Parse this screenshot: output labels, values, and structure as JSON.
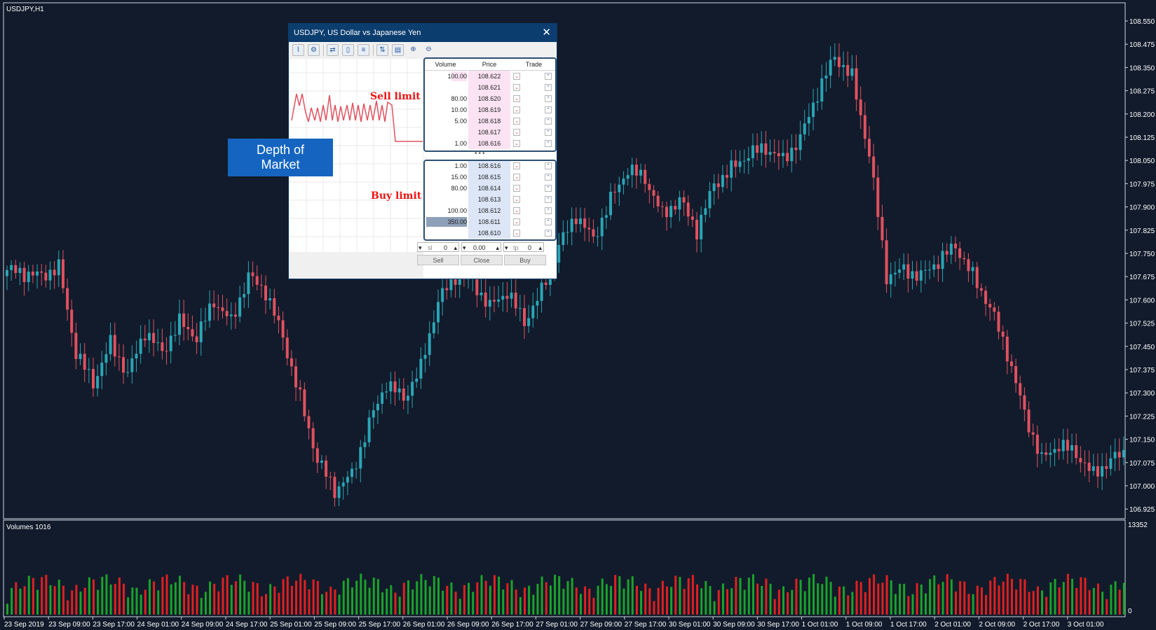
{
  "chart": {
    "symbol_label": "USDJPY,H1",
    "volumes_label": "Volumes 1016",
    "volume_max_label": "13352",
    "volume_zero_label": "0",
    "colors": {
      "background": "#121b2b",
      "bull": "#2aa5b5",
      "bear": "#e0515f",
      "vol_up": "#1aa32a",
      "vol_down": "#e02020",
      "axis_text": "#ffffff"
    }
  },
  "price_axis": {
    "ticks": [
      "108.550",
      "108.475",
      "108.350",
      "108.275",
      "108.200",
      "108.125",
      "108.050",
      "107.975",
      "107.900",
      "107.825",
      "107.750",
      "107.675",
      "107.600",
      "107.525",
      "107.450",
      "107.375",
      "107.300",
      "107.225",
      "107.150",
      "107.075",
      "107.000",
      "106.925"
    ]
  },
  "time_axis": {
    "ticks": [
      "23 Sep 2019",
      "23 Sep 09:00",
      "23 Sep 17:00",
      "24 Sep 01:00",
      "24 Sep 09:00",
      "24 Sep 17:00",
      "25 Sep 01:00",
      "25 Sep 09:00",
      "25 Sep 17:00",
      "26 Sep 01:00",
      "26 Sep 09:00",
      "26 Sep 17:00",
      "27 Sep 01:00",
      "27 Sep 09:00",
      "27 Sep 17:00",
      "30 Sep 01:00",
      "30 Sep 09:00",
      "30 Sep 17:00",
      "1 Oct 01:00",
      "1 Oct 09:00",
      "1 Oct 17:00",
      "2 Oct 01:00",
      "2 Oct 09:00",
      "2 Oct 17:00",
      "3 Oct 01:00"
    ]
  },
  "chart_data": {
    "type": "candlestick",
    "price_range": [
      106.925,
      108.585
    ],
    "volume_range": [
      0,
      13352
    ],
    "anchors": [
      [
        0,
        107.72
      ],
      [
        8,
        107.7
      ],
      [
        12,
        107.73
      ],
      [
        16,
        107.45
      ],
      [
        20,
        107.35
      ],
      [
        24,
        107.48
      ],
      [
        28,
        107.38
      ],
      [
        32,
        107.52
      ],
      [
        36,
        107.45
      ],
      [
        40,
        107.55
      ],
      [
        44,
        107.5
      ],
      [
        48,
        107.62
      ],
      [
        52,
        107.55
      ],
      [
        56,
        107.7
      ],
      [
        60,
        107.65
      ],
      [
        64,
        107.5
      ],
      [
        68,
        107.3
      ],
      [
        72,
        107.1
      ],
      [
        76,
        107.0
      ],
      [
        80,
        107.05
      ],
      [
        84,
        107.22
      ],
      [
        88,
        107.35
      ],
      [
        92,
        107.3
      ],
      [
        96,
        107.4
      ],
      [
        100,
        107.62
      ],
      [
        104,
        107.7
      ],
      [
        108,
        107.68
      ],
      [
        112,
        107.6
      ],
      [
        116,
        107.65
      ],
      [
        120,
        107.55
      ],
      [
        124,
        107.65
      ],
      [
        128,
        107.8
      ],
      [
        132,
        107.9
      ],
      [
        136,
        107.82
      ],
      [
        140,
        107.95
      ],
      [
        144,
        108.05
      ],
      [
        148,
        108.02
      ],
      [
        152,
        107.9
      ],
      [
        156,
        107.95
      ],
      [
        160,
        107.85
      ],
      [
        164,
        108.0
      ],
      [
        168,
        108.05
      ],
      [
        172,
        108.1
      ],
      [
        176,
        108.12
      ],
      [
        180,
        108.08
      ],
      [
        184,
        108.15
      ],
      [
        188,
        108.3
      ],
      [
        192,
        108.42
      ],
      [
        196,
        108.35
      ],
      [
        200,
        108.1
      ],
      [
        204,
        107.7
      ],
      [
        208,
        107.72
      ],
      [
        212,
        107.7
      ],
      [
        216,
        107.75
      ],
      [
        220,
        107.8
      ],
      [
        224,
        107.7
      ],
      [
        228,
        107.6
      ],
      [
        232,
        107.45
      ],
      [
        236,
        107.25
      ],
      [
        240,
        107.1
      ],
      [
        244,
        107.15
      ],
      [
        248,
        107.12
      ],
      [
        252,
        107.05
      ],
      [
        256,
        107.1
      ],
      [
        259,
        107.12
      ]
    ]
  },
  "dom": {
    "title": "USDJPY, US Dollar vs Japanese Yen",
    "headers": {
      "volume": "Volume",
      "price": "Price",
      "trade": "Trade"
    },
    "sell_rows": [
      {
        "volume": "100.00",
        "price": "108.622"
      },
      {
        "volume": "",
        "price": "108.621"
      },
      {
        "volume": "80.00",
        "price": "108.620"
      },
      {
        "volume": "10.00",
        "price": "108.619"
      },
      {
        "volume": "5.00",
        "price": "108.618"
      },
      {
        "volume": "",
        "price": "108.617"
      },
      {
        "volume": "1.00",
        "price": "108.616"
      }
    ],
    "buy_rows": [
      {
        "volume": "1.00",
        "price": "108.616"
      },
      {
        "volume": "15.00",
        "price": "108.615"
      },
      {
        "volume": "80.00",
        "price": "108.614"
      },
      {
        "volume": "",
        "price": "108.613"
      },
      {
        "volume": "100.00",
        "price": "108.612"
      },
      {
        "volume": "350.00",
        "price": "108.611"
      },
      {
        "volume": "",
        "price": "108.610"
      }
    ],
    "sl_label": "sl",
    "sl_value": "0",
    "volume_value": "0.00",
    "tp_label": "tp",
    "tp_value": "0",
    "sell_button": "Sell",
    "close_button": "Close",
    "buy_button": "Buy"
  },
  "annotations": {
    "sell_limit": "Sell limit",
    "buy_limit": "Buy limit",
    "callout_line1": "Depth of",
    "callout_line2": "Market"
  }
}
